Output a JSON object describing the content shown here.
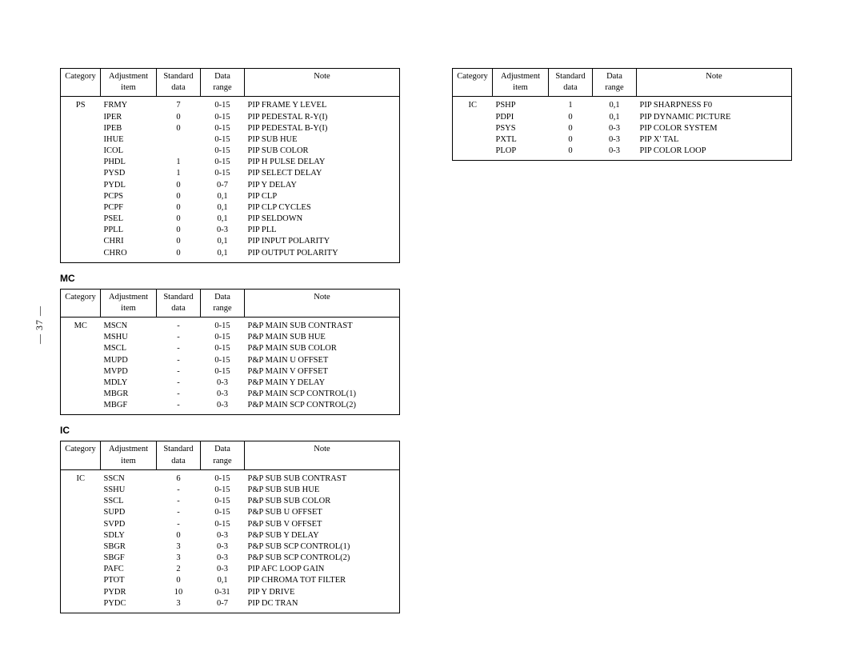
{
  "pageNumber": "— 37 —",
  "headers": {
    "category": "Category",
    "item_l1": "Adjustment",
    "item_l2": "item",
    "data_l1": "Standard",
    "data_l2": "data",
    "range_l1": "Data",
    "range_l2": "range",
    "note": "Note"
  },
  "tables": [
    {
      "id": "ps",
      "heading": null,
      "column": "left",
      "category": "PS",
      "rows": [
        {
          "item": "FRMY",
          "data": "7",
          "range": "0-15",
          "note": "PIP FRAME Y LEVEL"
        },
        {
          "item": "IPER",
          "data": "0",
          "range": "0-15",
          "note": "PIP PEDESTAL R-Y(I)"
        },
        {
          "item": "IPEB",
          "data": "0",
          "range": "0-15",
          "note": "PIP PEDESTAL B-Y(I)"
        },
        {
          "item": "IHUE",
          "data": "",
          "range": "0-15",
          "note": "PIP SUB HUE"
        },
        {
          "item": "ICOL",
          "data": "",
          "range": "0-15",
          "note": "PIP SUB COLOR"
        },
        {
          "item": "PHDL",
          "data": "1",
          "range": "0-15",
          "note": "PIP H PULSE DELAY"
        },
        {
          "item": "PYSD",
          "data": "1",
          "range": "0-15",
          "note": "PIP SELECT DELAY"
        },
        {
          "item": "PYDL",
          "data": "0",
          "range": "0-7",
          "note": "PIP Y DELAY"
        },
        {
          "item": "PCPS",
          "data": "0",
          "range": "0,1",
          "note": "PIP CLP"
        },
        {
          "item": "PCPF",
          "data": "0",
          "range": "0,1",
          "note": "PIP CLP CYCLES"
        },
        {
          "item": "PSEL",
          "data": "0",
          "range": "0,1",
          "note": "PIP SELDOWN"
        },
        {
          "item": "PPLL",
          "data": "0",
          "range": "0-3",
          "note": "PIP PLL"
        },
        {
          "item": "CHRI",
          "data": "0",
          "range": "0,1",
          "note": "PIP INPUT POLARITY"
        },
        {
          "item": "CHRO",
          "data": "0",
          "range": "0,1",
          "note": "PIP OUTPUT POLARITY"
        }
      ]
    },
    {
      "id": "mc",
      "heading": "MC",
      "column": "left",
      "category": "MC",
      "rows": [
        {
          "item": "MSCN",
          "data": "-",
          "range": "0-15",
          "note": "P&P MAIN SUB CONTRAST"
        },
        {
          "item": "MSHU",
          "data": "-",
          "range": "0-15",
          "note": "P&P MAIN SUB HUE"
        },
        {
          "item": "MSCL",
          "data": "-",
          "range": "0-15",
          "note": "P&P MAIN SUB COLOR"
        },
        {
          "item": "MUPD",
          "data": "-",
          "range": "0-15",
          "note": "P&P MAIN U OFFSET"
        },
        {
          "item": "MVPD",
          "data": "-",
          "range": "0-15",
          "note": "P&P MAIN V OFFSET"
        },
        {
          "item": "MDLY",
          "data": "-",
          "range": "0-3",
          "note": "P&P MAIN Y DELAY"
        },
        {
          "item": "MBGR",
          "data": "-",
          "range": "0-3",
          "note": "P&P MAIN SCP CONTROL(1)"
        },
        {
          "item": "MBGF",
          "data": "-",
          "range": "0-3",
          "note": "P&P MAIN SCP CONTROL(2)"
        }
      ]
    },
    {
      "id": "ic1",
      "heading": "IC",
      "column": "left",
      "category": "IC",
      "rows": [
        {
          "item": "SSCN",
          "data": "6",
          "range": "0-15",
          "note": "P&P SUB SUB CONTRAST"
        },
        {
          "item": "SSHU",
          "data": "-",
          "range": "0-15",
          "note": "P&P SUB SUB HUE"
        },
        {
          "item": "SSCL",
          "data": "-",
          "range": "0-15",
          "note": "P&P SUB SUB COLOR"
        },
        {
          "item": "SUPD",
          "data": "-",
          "range": "0-15",
          "note": "P&P SUB U OFFSET"
        },
        {
          "item": "SVPD",
          "data": "-",
          "range": "0-15",
          "note": "P&P SUB V OFFSET"
        },
        {
          "item": "SDLY",
          "data": "0",
          "range": "0-3",
          "note": "P&P SUB Y DELAY"
        },
        {
          "item": "SBGR",
          "data": "3",
          "range": "0-3",
          "note": "P&P SUB SCP CONTROL(1)"
        },
        {
          "item": "SBGF",
          "data": "3",
          "range": "0-3",
          "note": "P&P SUB SCP CONTROL(2)"
        },
        {
          "item": "PAFC",
          "data": "2",
          "range": "0-3",
          "note": "PIP AFC LOOP GAIN"
        },
        {
          "item": "PTOT",
          "data": "0",
          "range": "0,1",
          "note": "PIP CHROMA TOT FILTER"
        },
        {
          "item": "PYDR",
          "data": "10",
          "range": "0-31",
          "note": "PIP Y DRIVE"
        },
        {
          "item": "PYDC",
          "data": "3",
          "range": "0-7",
          "note": "PIP DC TRAN"
        }
      ]
    },
    {
      "id": "ic2",
      "heading": null,
      "column": "right",
      "category": "IC",
      "rows": [
        {
          "item": "PSHP",
          "data": "1",
          "range": "0,1",
          "note": "PIP SHARPNESS F0"
        },
        {
          "item": "PDPI",
          "data": "0",
          "range": "0,1",
          "note": "PIP DYNAMIC PICTURE"
        },
        {
          "item": "PSYS",
          "data": "0",
          "range": "0-3",
          "note": "PIP COLOR SYSTEM"
        },
        {
          "item": "PXTL",
          "data": "0",
          "range": "0-3",
          "note": "PIP X' TAL"
        },
        {
          "item": "PLOP",
          "data": "0",
          "range": "0-3",
          "note": "PIP COLOR LOOP"
        }
      ]
    }
  ]
}
